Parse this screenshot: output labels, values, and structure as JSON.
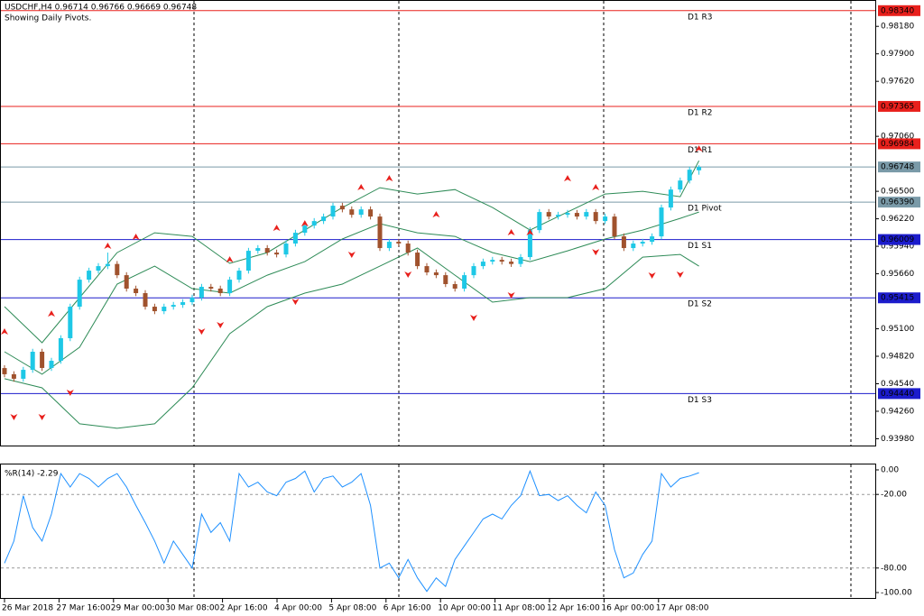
{
  "chart_data": {
    "type": "candlestick",
    "title": "USDCHF,H4  0.96714 0.96766 0.96669 0.96748",
    "subtitle": "Showing Daily Pivots.",
    "up_color": "#1ec8e6",
    "down_color": "#a0522d",
    "ylim": [
      0.9392,
      0.9843
    ],
    "yticks": [
      {
        "value": 0.9818,
        "label": "0.98180"
      },
      {
        "value": 0.979,
        "label": "0.97900"
      },
      {
        "value": 0.9762,
        "label": "0.97620"
      },
      {
        "value": 0.9706,
        "label": "0.97060"
      },
      {
        "value": 0.965,
        "label": "0.96500"
      },
      {
        "value": 0.9622,
        "label": "0.96220"
      },
      {
        "value": 0.9594,
        "label": "0.95940"
      },
      {
        "value": 0.9566,
        "label": "0.95660"
      },
      {
        "value": 0.951,
        "label": "0.95100"
      },
      {
        "value": 0.9482,
        "label": "0.94820"
      },
      {
        "value": 0.9454,
        "label": "0.94540"
      },
      {
        "value": 0.9426,
        "label": "0.94260"
      },
      {
        "value": 0.9398,
        "label": "0.93980"
      }
    ],
    "categories": [
      "26 Mar 2018",
      "27 Mar 16:00",
      "29 Mar 00:00",
      "30 Mar 08:00",
      "2 Apr 16:00",
      "4 Apr 00:00",
      "5 Apr 08:00",
      "6 Apr 16:00",
      "10 Apr 00:00",
      "11 Apr 08:00",
      "12 Apr 16:00",
      "16 Apr 00:00",
      "17 Apr 08:00"
    ],
    "candles": [
      [
        0.947,
        0.9473,
        0.94607,
        0.94637
      ],
      [
        0.94637,
        0.94667,
        0.94561,
        0.94591
      ],
      [
        0.94591,
        0.94712,
        0.94561,
        0.94682
      ],
      [
        0.94682,
        0.94896,
        0.94652,
        0.94866
      ],
      [
        0.94866,
        0.94896,
        0.94671,
        0.94701
      ],
      [
        0.94701,
        0.94804,
        0.94671,
        0.94774
      ],
      [
        0.94774,
        0.95034,
        0.94744,
        0.95004
      ],
      [
        0.95004,
        0.95355,
        0.94974,
        0.95325
      ],
      [
        0.95325,
        0.9563,
        0.95295,
        0.956
      ],
      [
        0.956,
        0.95722,
        0.9557,
        0.95692
      ],
      [
        0.95692,
        0.95768,
        0.95662,
        0.95738
      ],
      [
        0.95738,
        0.95876,
        0.95708,
        0.9576
      ],
      [
        0.9576,
        0.9579,
        0.95616,
        0.95646
      ],
      [
        0.95646,
        0.95676,
        0.95479,
        0.95509
      ],
      [
        0.95509,
        0.95539,
        0.95433,
        0.95463
      ],
      [
        0.95463,
        0.95493,
        0.95295,
        0.95325
      ],
      [
        0.95325,
        0.95355,
        0.95249,
        0.95279
      ],
      [
        0.95279,
        0.95355,
        0.95249,
        0.95325
      ],
      [
        0.95325,
        0.95373,
        0.95295,
        0.95343
      ],
      [
        0.95343,
        0.95401,
        0.95313,
        0.95371
      ],
      [
        0.95371,
        0.95447,
        0.95341,
        0.95417
      ],
      [
        0.95417,
        0.95557,
        0.95387,
        0.95527
      ],
      [
        0.95527,
        0.95557,
        0.95479,
        0.95509
      ],
      [
        0.95509,
        0.95539,
        0.95433,
        0.95463
      ],
      [
        0.95463,
        0.9563,
        0.95433,
        0.956
      ],
      [
        0.956,
        0.95722,
        0.9557,
        0.95692
      ],
      [
        0.95692,
        0.95924,
        0.95662,
        0.95894
      ],
      [
        0.95894,
        0.95952,
        0.95864,
        0.95922
      ],
      [
        0.95922,
        0.95952,
        0.95846,
        0.95876
      ],
      [
        0.95876,
        0.95906,
        0.95827,
        0.95857
      ],
      [
        0.95857,
        0.95998,
        0.95827,
        0.95968
      ],
      [
        0.95968,
        0.96108,
        0.95938,
        0.96078
      ],
      [
        0.96078,
        0.96181,
        0.96048,
        0.96151
      ],
      [
        0.96151,
        0.96227,
        0.96121,
        0.96197
      ],
      [
        0.96197,
        0.96273,
        0.96167,
        0.96243
      ],
      [
        0.96243,
        0.96383,
        0.96213,
        0.96353
      ],
      [
        0.96353,
        0.96383,
        0.96286,
        0.96316
      ],
      [
        0.96316,
        0.96346,
        0.96231,
        0.96261
      ],
      [
        0.96261,
        0.96346,
        0.96231,
        0.96316
      ],
      [
        0.96316,
        0.96346,
        0.96213,
        0.96243
      ],
      [
        0.96243,
        0.96273,
        0.95892,
        0.95922
      ],
      [
        0.95922,
        0.96016,
        0.95892,
        0.95986
      ],
      [
        0.95986,
        0.96016,
        0.95938,
        0.95968
      ],
      [
        0.95968,
        0.95998,
        0.95846,
        0.95876
      ],
      [
        0.95876,
        0.95906,
        0.95708,
        0.95738
      ],
      [
        0.95738,
        0.95768,
        0.95644,
        0.95674
      ],
      [
        0.95674,
        0.95704,
        0.95616,
        0.95646
      ],
      [
        0.95646,
        0.95676,
        0.95525,
        0.95555
      ],
      [
        0.95555,
        0.95585,
        0.95479,
        0.95509
      ],
      [
        0.95509,
        0.95676,
        0.95479,
        0.95646
      ],
      [
        0.95646,
        0.95768,
        0.95616,
        0.95738
      ],
      [
        0.95738,
        0.95814,
        0.95708,
        0.95784
      ],
      [
        0.95784,
        0.95832,
        0.95754,
        0.95802
      ],
      [
        0.95802,
        0.95832,
        0.95754,
        0.95784
      ],
      [
        0.95784,
        0.95814,
        0.9573,
        0.9576
      ],
      [
        0.9576,
        0.9586,
        0.9573,
        0.9583
      ],
      [
        0.9583,
        0.96135,
        0.958,
        0.96105
      ],
      [
        0.96105,
        0.96319,
        0.96075,
        0.96289
      ],
      [
        0.96289,
        0.96319,
        0.96213,
        0.96243
      ],
      [
        0.96243,
        0.96291,
        0.96213,
        0.96261
      ],
      [
        0.96261,
        0.9631,
        0.96231,
        0.9628
      ],
      [
        0.9628,
        0.9631,
        0.96213,
        0.96243
      ],
      [
        0.96243,
        0.96319,
        0.96213,
        0.96289
      ],
      [
        0.96289,
        0.96319,
        0.96167,
        0.96197
      ],
      [
        0.96197,
        0.96273,
        0.96167,
        0.96243
      ],
      [
        0.96243,
        0.96273,
        0.96011,
        0.96041
      ],
      [
        0.96041,
        0.96071,
        0.95892,
        0.95922
      ],
      [
        0.95922,
        0.95998,
        0.95892,
        0.95968
      ],
      [
        0.95968,
        0.96016,
        0.95938,
        0.95986
      ],
      [
        0.95986,
        0.96071,
        0.95956,
        0.96041
      ],
      [
        0.96041,
        0.96365,
        0.96011,
        0.96335
      ],
      [
        0.96335,
        0.96548,
        0.96305,
        0.96518
      ],
      [
        0.96518,
        0.9664,
        0.96488,
        0.9661
      ],
      [
        0.9661,
        0.9675,
        0.9658,
        0.9672
      ],
      [
        0.96714,
        0.96766,
        0.96669,
        0.96748
      ]
    ],
    "bands": {
      "color": "#2e8b57",
      "index": [
        0,
        4,
        8,
        12,
        16,
        20,
        24,
        28,
        32,
        36,
        40,
        44,
        48,
        52,
        56,
        60,
        64,
        68,
        72,
        74
      ],
      "upper": [
        0.95325,
        0.94958,
        0.95417,
        0.95876,
        0.96078,
        0.96041,
        0.95766,
        0.95876,
        0.96105,
        0.96335,
        0.96537,
        0.96473,
        0.96518,
        0.96335,
        0.96105,
        0.96289,
        0.96473,
        0.965,
        0.96445,
        0.96812
      ],
      "middle": [
        0.94866,
        0.94637,
        0.94912,
        0.95555,
        0.95738,
        0.95509,
        0.95463,
        0.95646,
        0.95784,
        0.96014,
        0.9617,
        0.96078,
        0.96041,
        0.95876,
        0.95784,
        0.95894,
        0.96014,
        0.96105,
        0.96225,
        0.96289
      ],
      "lower": [
        0.94591,
        0.94499,
        0.94132,
        0.94086,
        0.94132,
        0.94499,
        0.9505,
        0.95325,
        0.95463,
        0.95555,
        0.95738,
        0.95922,
        0.95646,
        0.95371,
        0.95417,
        0.95417,
        0.95509,
        0.9583,
        0.95857,
        0.95738
      ]
    },
    "fractals": {
      "color": "#e8201c",
      "up_index": [
        0,
        5,
        11,
        14,
        24,
        29,
        32,
        38,
        41,
        46,
        54,
        56,
        60,
        63,
        74
      ],
      "up": [
        0.95004,
        0.95187,
        0.95876,
        0.95968,
        0.95738,
        0.96059,
        0.96105,
        0.96473,
        0.96564,
        0.96197,
        0.96014,
        0.96014,
        0.96564,
        0.96473,
        0.96867
      ],
      "down_index": [
        1,
        4,
        7,
        21,
        23,
        31,
        37,
        43,
        50,
        54,
        63,
        69,
        72
      ],
      "down": [
        0.94269,
        0.94269,
        0.94517,
        0.95141,
        0.95206,
        0.95444,
        0.95922,
        0.9572,
        0.95279,
        0.95509,
        0.95949,
        0.95711,
        0.9572
      ]
    },
    "levels": {
      "names": [
        "D1 R3",
        "D1 R2",
        "D1 R1",
        "D1 Pivot",
        "D1 S1",
        "D1 S2",
        "D1 S3"
      ],
      "values": [
        0.9834,
        0.97365,
        0.96984,
        0.9639,
        0.96009,
        0.95415,
        0.9444
      ],
      "value_labels": [
        "0.98340",
        "0.97365",
        "0.96984",
        "0.96390",
        "0.96009",
        "0.95415",
        "0.94440"
      ],
      "colors": [
        "#e8201c",
        "#e8201c",
        "#e8201c",
        "#7a9aa8",
        "#1c1ccc",
        "#1c1ccc",
        "#1c1ccc"
      ]
    },
    "current_price": {
      "value": 0.96748,
      "label": "0.96748",
      "color": "#7a9aa8"
    },
    "indicator": {
      "title": "%R(14) -2.29",
      "color": "#1e90ff",
      "ylim": [
        -104.4,
        4.4
      ],
      "yticks": [
        {
          "value": 0,
          "label": "0.00"
        },
        {
          "value": -20,
          "label": "-20.00"
        },
        {
          "value": -80,
          "label": "-80.00"
        },
        {
          "value": -100,
          "label": "-100.00"
        }
      ],
      "levels": [
        -20,
        -80
      ],
      "values": [
        -76,
        -58,
        -21,
        -47,
        -58,
        -36,
        -3,
        -14,
        -3,
        -7,
        -14,
        -7,
        -3,
        -14,
        -29,
        -43,
        -58,
        -76,
        -58,
        -69,
        -80,
        -36,
        -51,
        -43,
        -58,
        -3,
        -14,
        -10,
        -18,
        -21,
        -10,
        -7,
        -1,
        -18,
        -7,
        -5,
        -14,
        -10,
        -3,
        -29,
        -80,
        -76,
        -88,
        -73,
        -88,
        -99,
        -88,
        -95,
        -73,
        -62,
        -51,
        -40,
        -36,
        -40,
        -29,
        -21,
        -1,
        -21,
        -20,
        -25,
        -21,
        -29,
        -35,
        -18,
        -29,
        -65,
        -88,
        -84,
        -69,
        -58,
        -3,
        -14,
        -7,
        -5,
        -2.29
      ]
    }
  }
}
